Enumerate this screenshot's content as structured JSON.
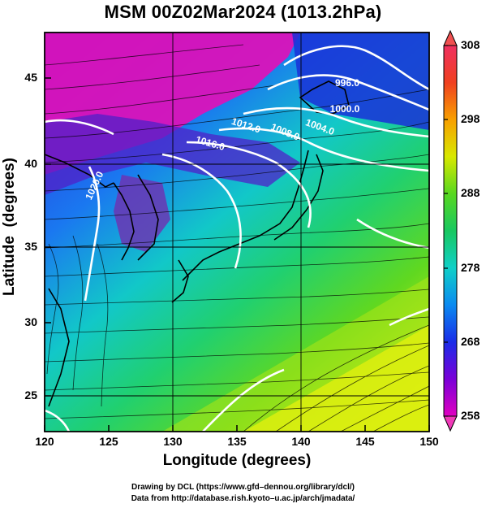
{
  "title": "MSM 00Z02Mar2024 (1013.2hPa)",
  "axes": {
    "xlabel": "Longitude (degrees)",
    "ylabel": "Latitude  (degrees)",
    "x_ticks": [
      "120",
      "125",
      "130",
      "135",
      "140",
      "145",
      "150"
    ],
    "y_ticks": [
      "25",
      "30",
      "35",
      "40",
      "45"
    ],
    "xlim": [
      120,
      150
    ],
    "ylim": [
      22.4,
      47.6
    ]
  },
  "colorbar": {
    "ticks": [
      "258",
      "268",
      "278",
      "288",
      "298",
      "308"
    ],
    "range": [
      258,
      308
    ]
  },
  "isobar_labels": [
    "996.0",
    "1000.0",
    "1004.0",
    "1008.0",
    "1012.0",
    "1016.0",
    "1020.0"
  ],
  "credits": {
    "line1": "Drawing by DCL (https://www.gfd–dennou.org/library/dcl/)",
    "line2": "Data from http://database.rish.kyoto–u.ac.jp/arch/jmadata/"
  },
  "chart_data": {
    "type": "heatmap",
    "title": "MSM 00Z02Mar2024 (1013.2hPa)",
    "xlabel": "Longitude (degrees)",
    "ylabel": "Latitude  (degrees)",
    "xlim": [
      120,
      150
    ],
    "ylim": [
      22.4,
      47.6
    ],
    "grid": true,
    "colorbar_range": [
      258,
      308
    ],
    "isobar_levels": [
      996,
      1000,
      1004,
      1008,
      1012,
      1016,
      1020
    ],
    "overlays": [
      "temperature shading",
      "pressure contours",
      "streamlines",
      "coastlines"
    ]
  }
}
